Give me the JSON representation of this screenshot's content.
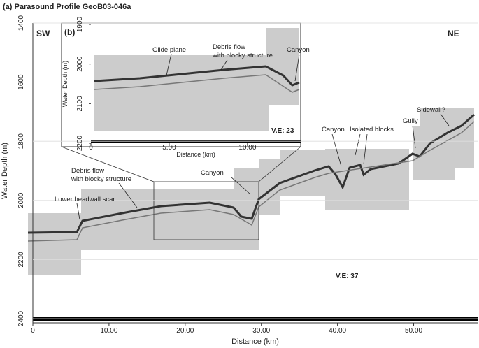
{
  "chart_data": [
    {
      "type": "profile",
      "title": "(a) Parasound Profile GeoB03-046a",
      "x_label": "Distance (km)",
      "y_label": "Water Depth (m)",
      "xlim": [
        0,
        58.4
      ],
      "ylim": [
        1400,
        2400
      ],
      "xticks": [
        0,
        {
          "value": 10,
          "label": "10.00"
        },
        {
          "value": 20,
          "label": "20.00"
        },
        {
          "value": 30,
          "label": "30.00"
        },
        {
          "value": 40,
          "label": "40.00"
        },
        {
          "value": 50,
          "label": "50.00"
        }
      ],
      "yticks": [
        1400,
        1600,
        1800,
        2000,
        2200,
        2400
      ],
      "annotations": [
        "SW",
        "NE",
        "V.E: 37",
        "Lower headwall scar",
        "Debris flow",
        "with blocky structure",
        "Canyon",
        "Canyon",
        "Isolated blocks",
        "Gully",
        "Sidewall?"
      ]
    },
    {
      "type": "profile",
      "title": "(b)",
      "x_label": "Distance (km)",
      "y_label": "Water Depth (m)",
      "xlim": [
        0,
        13.4
      ],
      "ylim": [
        1900,
        2200
      ],
      "xticks": [
        0,
        {
          "value": 5,
          "label": "5.00"
        },
        {
          "value": 10,
          "label": "10.00"
        }
      ],
      "yticks": [
        1900,
        2000,
        2100,
        2200
      ],
      "annotations": [
        "Glide plane",
        "Debris flow",
        "with blocky structure",
        "Canyon",
        "V.E: 23"
      ]
    }
  ]
}
